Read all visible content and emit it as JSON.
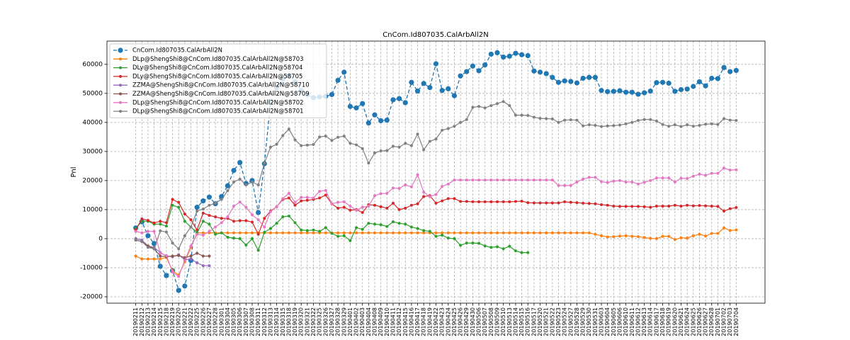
{
  "chart_data": {
    "type": "line",
    "title": "CnCom.Id807035.CalArbAll2N",
    "y_label": "Pnl",
    "categories": [
      "20190211",
      "20190212",
      "20190213",
      "20190214",
      "20190215",
      "20190218",
      "20190219",
      "20190220",
      "20190221",
      "20190222",
      "20190225",
      "20190226",
      "20190227",
      "20190228",
      "20190301",
      "20190304",
      "20190305",
      "20190306",
      "20190307",
      "20190308",
      "20190311",
      "20190312",
      "20190313",
      "20190314",
      "20190315",
      "20190318",
      "20190319",
      "20190320",
      "20190321",
      "20190322",
      "20190325",
      "20190326",
      "20190327",
      "20190328",
      "20190329",
      "20190401",
      "20190402",
      "20190403",
      "20190404",
      "20190408",
      "20190409",
      "20190410",
      "20190411",
      "20190412",
      "20190415",
      "20190416",
      "20190417",
      "20190418",
      "20190419",
      "20190422",
      "20190423",
      "20190424",
      "20190425",
      "20190426",
      "20190429",
      "20190430",
      "20190506",
      "20190507",
      "20190508",
      "20190509",
      "20190510",
      "20190513",
      "20190514",
      "20190515",
      "20190516",
      "20190517",
      "20190520",
      "20190521",
      "20190522",
      "20190523",
      "20190524",
      "20190527",
      "20190528",
      "20190529",
      "20190530",
      "20190531",
      "20190603",
      "20190604",
      "20190605",
      "20190606",
      "20190610",
      "20190611",
      "20190612",
      "20190613",
      "20190614",
      "20190617",
      "20190618",
      "20190619",
      "20190620",
      "20190621",
      "20190624",
      "20190625",
      "20190626",
      "20190627",
      "20190628",
      "20190701",
      "20190702",
      "20190703",
      "20190704"
    ],
    "series": [
      {
        "name": "CnCom.Id807035.CalArbAll2N",
        "color": "#1f77b4",
        "style": "dashed",
        "values": [
          3700,
          5800,
          1000,
          -1700,
          -9500,
          -12700,
          -11000,
          -17800,
          -16300,
          -7500,
          10800,
          13000,
          14300,
          12000,
          14500,
          18200,
          23500,
          26200,
          19000,
          20000,
          9000,
          25800,
          47000,
          52000,
          55000,
          56000,
          54000,
          51000,
          49500,
          48500,
          48800,
          49000,
          49600,
          54500,
          57300,
          45500,
          45000,
          46500,
          39800,
          42600,
          40600,
          40800,
          47800,
          48200,
          46800,
          53800,
          50800,
          53400,
          52000,
          60200,
          51000,
          51600,
          49200,
          56000,
          57500,
          59400,
          57800,
          59800,
          63500,
          64000,
          62500,
          62800,
          63800,
          63300,
          63000,
          57700,
          57300,
          56800,
          55500,
          53800,
          54300,
          54100,
          53600,
          55200,
          55500,
          55500,
          51000,
          50600,
          50700,
          50900,
          50400,
          50400,
          49700,
          50200,
          50800,
          53700,
          53800,
          53500,
          50700,
          51300,
          51500,
          52400,
          54000,
          52600,
          55200,
          55100,
          58900,
          57500,
          57900
        ]
      },
      {
        "name": "DLp@ShengShi8@CnCom.Id807035.CalArbAll2N@58703",
        "color": "#ff7f0e",
        "values": [
          -6000,
          -7000,
          -7000,
          -7000,
          -7000,
          -6500,
          -11000,
          -12500,
          -8000,
          -3000,
          2000,
          2000,
          2000,
          2000,
          2000,
          2000,
          2000,
          2000,
          2000,
          2000,
          2000,
          2000,
          2000,
          2000,
          2000,
          2000,
          2000,
          2000,
          2000,
          2000,
          2000,
          2000,
          2000,
          2000,
          2000,
          2000,
          2000,
          2000,
          2000,
          2000,
          2000,
          2000,
          2000,
          2000,
          2000,
          2000,
          2000,
          2000,
          2000,
          2000,
          2000,
          2000,
          2000,
          2000,
          2000,
          2000,
          2000,
          2000,
          2000,
          2000,
          2000,
          2000,
          2000,
          2000,
          2000,
          2000,
          2000,
          2000,
          2000,
          2000,
          2000,
          2000,
          2000,
          2000,
          2000,
          1500,
          1000,
          600,
          700,
          900,
          1000,
          800,
          700,
          400,
          100,
          0,
          800,
          800,
          -300,
          300,
          200,
          1000,
          1500,
          900,
          1800,
          1800,
          3700,
          2800,
          3000
        ]
      },
      {
        "name": "DLy@ShengShi8@CnCom.Id807035.CalArbAll2N@58704",
        "color": "#2ca02c",
        "values": [
          3500,
          6000,
          6000,
          5000,
          5000,
          4300,
          11500,
          10800,
          6000,
          4000,
          2000,
          6000,
          5000,
          1500,
          2000,
          500,
          200,
          0,
          -2200,
          0,
          -4000,
          2200,
          3500,
          5300,
          7500,
          7800,
          5500,
          3000,
          2800,
          3000,
          2500,
          3800,
          1800,
          800,
          1000,
          -700,
          3800,
          3200,
          5300,
          5000,
          4800,
          4200,
          5800,
          5300,
          5000,
          4000,
          3500,
          2800,
          2500,
          800,
          1200,
          200,
          0,
          -2300,
          -1500,
          -1500,
          -1600,
          -2500,
          -3000,
          -2800,
          -3500,
          -2600,
          -4200,
          -4800,
          -4800,
          null,
          null,
          null,
          null,
          null,
          null,
          null,
          null,
          null,
          null,
          null,
          null,
          null,
          null,
          null,
          null,
          null,
          null,
          null,
          null,
          null,
          null,
          null,
          null,
          null,
          null,
          null,
          null,
          null,
          null,
          null,
          null,
          null,
          null
        ]
      },
      {
        "name": "DLy@ShengShi8@CnCom.Id807035.CalArbAll2N@58705",
        "color": "#d62728",
        "values": [
          3000,
          6800,
          6300,
          5400,
          6000,
          5500,
          13500,
          12500,
          8500,
          6500,
          3000,
          8800,
          8000,
          7500,
          7000,
          7000,
          6000,
          6200,
          6200,
          5700,
          1500,
          7000,
          9500,
          11000,
          13500,
          14000,
          11500,
          13000,
          13200,
          13500,
          14000,
          15000,
          12000,
          10500,
          10800,
          9800,
          10000,
          9000,
          11700,
          11500,
          11000,
          10500,
          12200,
          10000,
          10500,
          11500,
          12000,
          14500,
          14800,
          12200,
          13000,
          13800,
          13800,
          12800,
          12800,
          12700,
          12700,
          12700,
          12700,
          12700,
          12700,
          12700,
          12800,
          12900,
          12400,
          12300,
          12300,
          12300,
          12300,
          12300,
          12700,
          12500,
          12400,
          12200,
          12100,
          12000,
          11700,
          11500,
          11200,
          11100,
          11100,
          11100,
          11100,
          11000,
          10800,
          11200,
          11200,
          11200,
          11500,
          11200,
          11500,
          11300,
          11400,
          11300,
          11200,
          11100,
          9500,
          10300,
          10700
        ]
      },
      {
        "name": "ZZMA@ShengShi8@CnCom.Id807035.CalArbAll2N@58710",
        "color": "#9467bd",
        "values": [
          0,
          -500,
          -2500,
          -3000,
          -4800,
          -6000,
          -6200,
          -5500,
          -7300,
          -7000,
          -8300,
          -9300,
          -9300,
          null,
          null,
          null,
          null,
          null,
          null,
          null,
          null,
          null,
          null,
          null,
          null,
          null,
          null,
          null,
          null,
          null,
          null,
          null,
          null,
          null,
          null,
          null,
          null,
          null,
          null,
          null,
          null,
          null,
          null,
          null,
          null,
          null,
          null,
          null,
          null,
          null,
          null,
          null,
          null,
          null,
          null,
          null,
          null,
          null,
          null,
          null,
          null,
          null,
          null,
          null,
          null,
          null,
          null,
          null,
          null,
          null,
          null,
          null,
          null,
          null,
          null,
          null,
          null,
          null,
          null,
          null,
          null,
          null,
          null,
          null,
          null,
          null,
          null,
          null,
          null,
          null,
          null,
          null,
          null,
          null,
          null,
          null,
          null,
          null,
          null
        ]
      },
      {
        "name": "ZZMA@ShengShi8@CnCom.Id807035.CalArbAll2N@58709",
        "color": "#8c564b",
        "values": [
          -500,
          -1000,
          -2500,
          -3500,
          -6000,
          -6200,
          -6000,
          -5800,
          -6500,
          -6000,
          -5000,
          -6000,
          -6000,
          null,
          null,
          null,
          null,
          null,
          null,
          null,
          null,
          null,
          null,
          null,
          null,
          null,
          null,
          null,
          null,
          null,
          null,
          null,
          null,
          null,
          null,
          null,
          null,
          null,
          null,
          null,
          null,
          null,
          null,
          null,
          null,
          null,
          null,
          null,
          null,
          null,
          null,
          null,
          null,
          null,
          null,
          null,
          null,
          null,
          null,
          null,
          null,
          null,
          null,
          null,
          null,
          null,
          null,
          null,
          null,
          null,
          null,
          null,
          null,
          null,
          null,
          null,
          null,
          null,
          null,
          null,
          null,
          null,
          null,
          null,
          null,
          null,
          null,
          null,
          null,
          null,
          null,
          null,
          null,
          null,
          null,
          null,
          null,
          null,
          null
        ]
      },
      {
        "name": "DLp@ShengShi8@CnCom.Id807035.CalArbAll2N@58702",
        "color": "#e377c2",
        "values": [
          2500,
          2000,
          2500,
          2500,
          -5000,
          -5800,
          -11500,
          -13000,
          -7500,
          -2500,
          1500,
          1200,
          2500,
          4000,
          5500,
          7500,
          11200,
          12600,
          10800,
          8200,
          6500,
          4000,
          9300,
          11000,
          13800,
          15600,
          12500,
          14200,
          14200,
          14000,
          16300,
          16600,
          12000,
          12500,
          12700,
          11200,
          9800,
          10800,
          11200,
          14800,
          15500,
          15600,
          17400,
          17300,
          18500,
          17800,
          22000,
          16000,
          14500,
          15200,
          18000,
          18800,
          20200,
          20200,
          20200,
          20200,
          20200,
          20200,
          20200,
          20200,
          20200,
          20200,
          20200,
          20200,
          20200,
          20200,
          20200,
          20200,
          20200,
          18300,
          18300,
          18300,
          19500,
          20500,
          21100,
          21100,
          19600,
          19300,
          19800,
          20000,
          19500,
          19500,
          18800,
          19400,
          20000,
          20900,
          20900,
          20900,
          19500,
          20800,
          20700,
          21500,
          22200,
          21800,
          22500,
          22500,
          24300,
          23600,
          23700
        ]
      },
      {
        "name": "DLp@ShengShi8@CnCom.Id807035.CalArbAll2N@58701",
        "color": "#7f7f7f",
        "values": [
          -500,
          -1000,
          -3000,
          -3500,
          2700,
          2300,
          -1500,
          -3500,
          1000,
          4000,
          9500,
          10200,
          11500,
          12200,
          13500,
          16500,
          19500,
          20500,
          18500,
          19500,
          18500,
          26000,
          31500,
          32500,
          35500,
          37700,
          34000,
          32000,
          32200,
          32400,
          35000,
          35300,
          33800,
          34900,
          35300,
          32800,
          32300,
          31000,
          26000,
          29500,
          30200,
          30300,
          31800,
          31500,
          32800,
          32000,
          36000,
          30600,
          33500,
          34300,
          37300,
          37900,
          38700,
          40000,
          41000,
          45200,
          45500,
          45000,
          45800,
          46500,
          47200,
          45800,
          42500,
          42500,
          42400,
          41800,
          41400,
          41300,
          41200,
          40000,
          40800,
          40900,
          40800,
          38800,
          39200,
          39000,
          38600,
          38800,
          38900,
          39100,
          39500,
          40000,
          40700,
          41000,
          41000,
          40500,
          39300,
          38700,
          39200,
          38600,
          39200,
          38700,
          39000,
          39400,
          39500,
          39300,
          41300,
          40800,
          40700
        ]
      }
    ],
    "ylim": [
      -22200,
      68000
    ],
    "yticks": [
      -20000,
      -10000,
      0,
      10000,
      20000,
      30000,
      40000,
      50000,
      60000
    ],
    "grid": true,
    "legend": "upper left"
  }
}
